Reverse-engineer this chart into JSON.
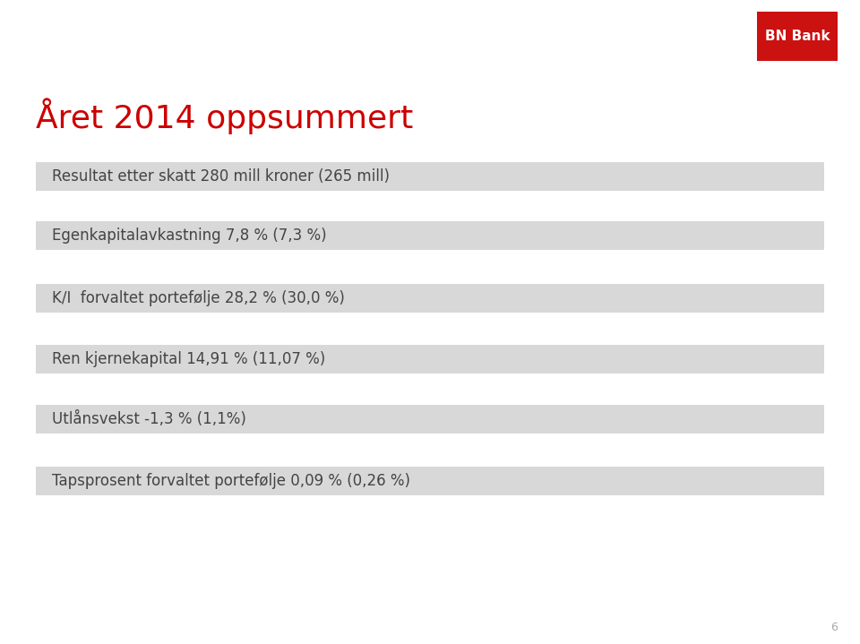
{
  "title": "Året 2014 oppsummert",
  "title_color": "#cc0000",
  "title_fontsize": 26,
  "background_color": "#ffffff",
  "rows": [
    "Resultat etter skatt 280 mill kroner (265 mill)",
    "Egenkapitalavkastning 7,8 % (7,3 %)",
    "K/I  forvaltet portefølje 28,2 % (30,0 %)",
    "Ren kjernekapital 14,91 % (11,07 %)",
    "Utlånsvekst -1,3 % (1,1%)",
    "Tapsprosent forvaltet portefølje 0,09 % (0,26 %)"
  ],
  "row_fontsize": 12,
  "row_text_color": "#444444",
  "row_bg_color": "#d8d8d8",
  "logo_bg": "#cc1111",
  "logo_text": "BN Bank",
  "logo_text_color": "#ffffff",
  "logo_fontsize": 11,
  "page_number": "6",
  "page_num_color": "#aaaaaa",
  "page_num_fontsize": 9
}
